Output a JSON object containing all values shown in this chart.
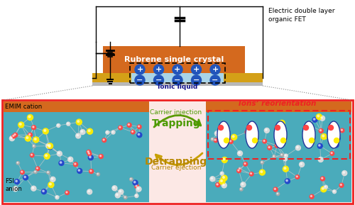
{
  "title": "Electric double layer\norganic FET",
  "rubrene_label": "Rubrene single crystal",
  "ionic_liquid_label": "Ionic liquid",
  "emim_label": "EMIM cation",
  "fsi_label": "FSI\nanion",
  "trap_label": "Trapping",
  "detrap_label": "Detrapping",
  "carrier_inj": "Carrier injection",
  "carrier_ej": "Carrier ejection",
  "ions_reor": "Ions’ reorientation",
  "bg_color": "#ffffff",
  "pink_bg": "#fce8e5",
  "rubrene_color": "#d4691e",
  "gold_color": "#d4a017",
  "gray_color": "#b8b8b8",
  "ionic_liq_color": "#a8d4e8",
  "blue_ion_color": "#2255bb",
  "arrow_green": "#5a9a00",
  "arrow_gold": "#c8a000",
  "red_box": "#ee2222",
  "trap_green": "#4a9a00",
  "detrap_gold": "#b88800",
  "teal_mol": "#4aabbb",
  "wire_color": "#111111"
}
